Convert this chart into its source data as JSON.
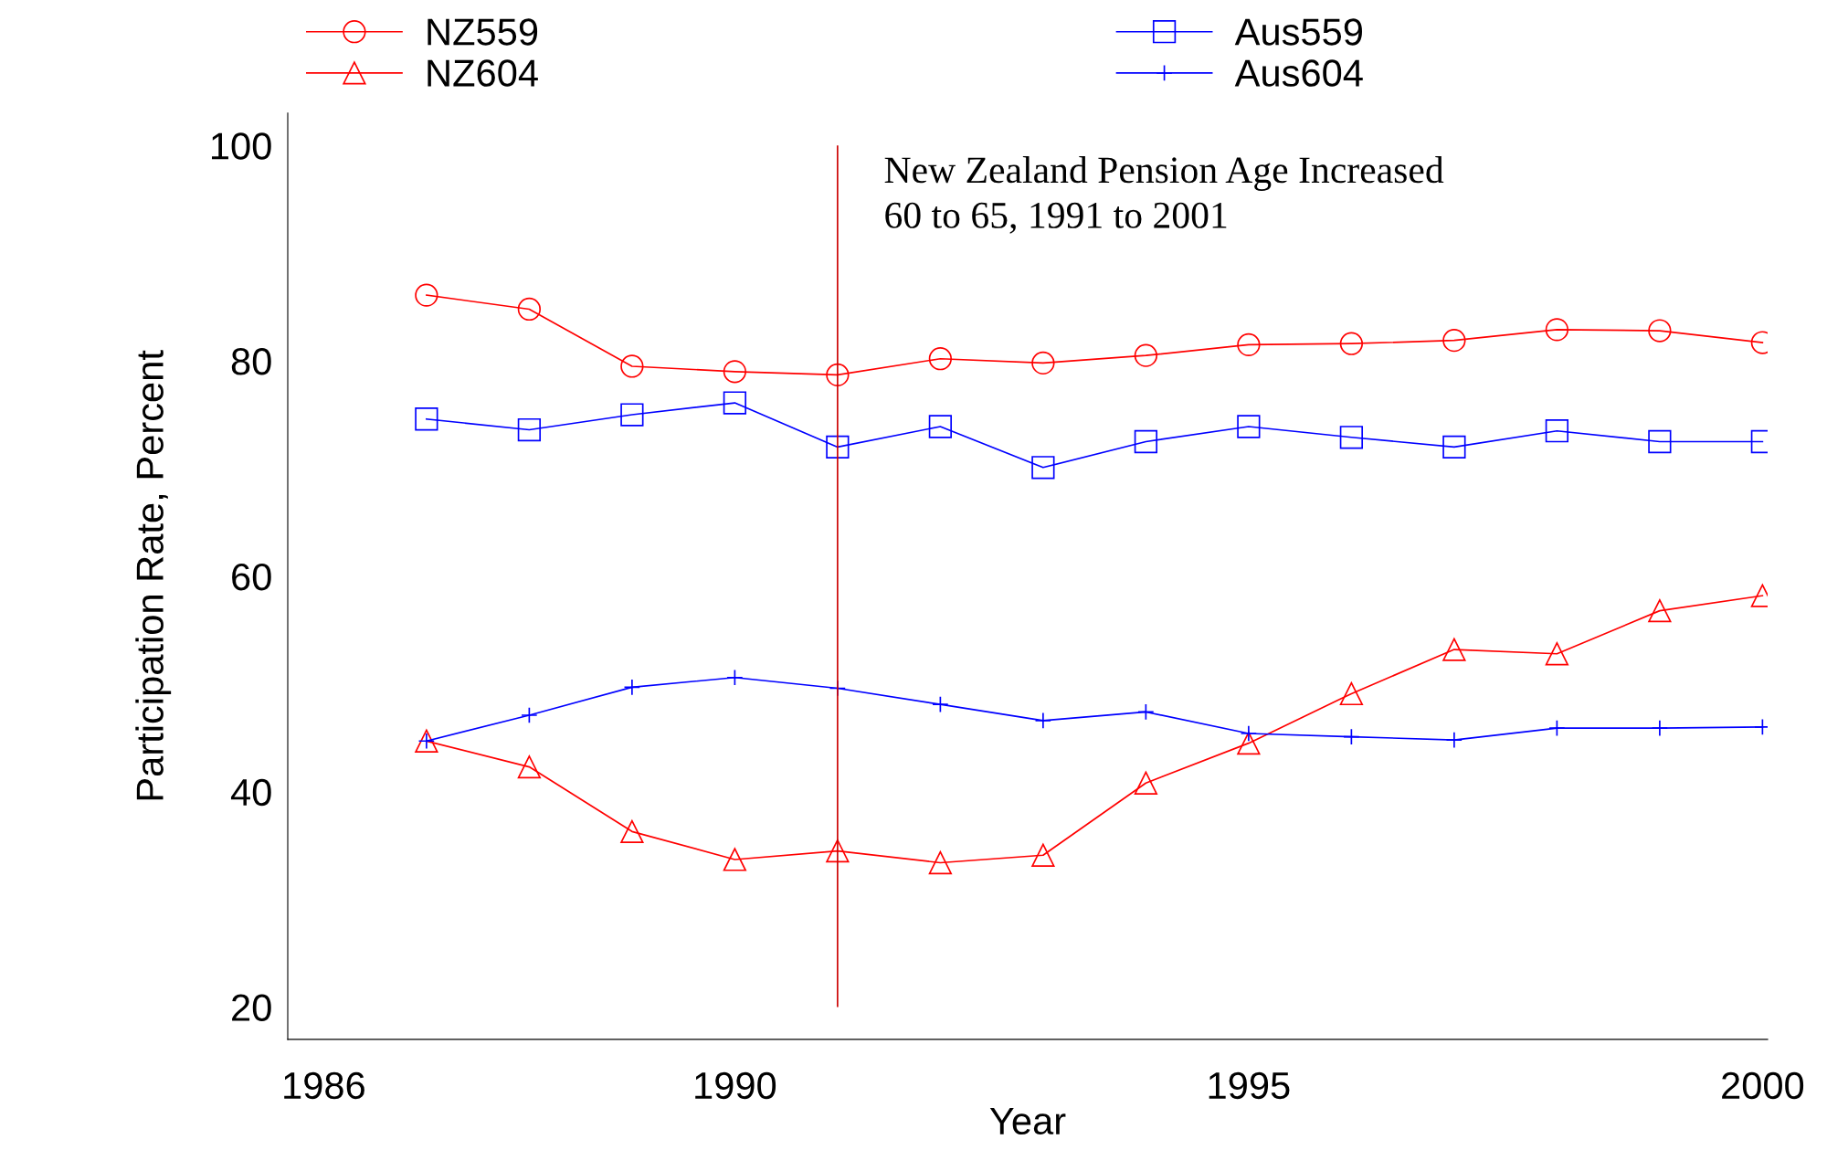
{
  "chart_data": {
    "type": "line",
    "xlabel": "Year",
    "ylabel": "Participation Rate, Percent",
    "x": [
      1987,
      1988,
      1989,
      1990,
      1991,
      1992,
      1993,
      1994,
      1995,
      1996,
      1997,
      1998,
      1999,
      2000
    ],
    "series": [
      {
        "name": "NZ559",
        "color": "#ff0000",
        "marker": "circle",
        "values": [
          86.1,
          84.8,
          79.5,
          79.0,
          78.7,
          80.2,
          79.8,
          80.5,
          81.5,
          81.6,
          81.9,
          82.9,
          82.8,
          81.7
        ]
      },
      {
        "name": "NZ604",
        "color": "#ff0000",
        "marker": "triangle",
        "values": [
          44.7,
          42.3,
          36.3,
          33.7,
          34.5,
          33.4,
          34.1,
          40.8,
          44.5,
          49.1,
          53.2,
          52.8,
          56.8,
          58.2
        ]
      },
      {
        "name": "Aus559",
        "color": "#0000ff",
        "marker": "square",
        "values": [
          74.6,
          73.6,
          75.0,
          76.1,
          72.0,
          73.9,
          70.1,
          72.5,
          73.9,
          72.9,
          72.0,
          73.5,
          72.5,
          72.5
        ]
      },
      {
        "name": "Aus604",
        "color": "#0000ff",
        "marker": "cross",
        "values": [
          44.7,
          47.1,
          49.7,
          50.6,
          49.6,
          48.1,
          46.6,
          47.4,
          45.4,
          45.1,
          44.8,
          45.9,
          45.9,
          46.0
        ]
      }
    ],
    "xlim": [
      1985.65,
      2000.05
    ],
    "xticks": [
      1986,
      1990,
      1995,
      2000
    ],
    "ylim": [
      17,
      103
    ],
    "yticks": [
      20,
      40,
      60,
      80,
      100
    ],
    "ref_lines": [
      {
        "axis": "x",
        "value": 1991,
        "label": "New Zealand Pension Age Increased\n60 to 65, 1991 to 2001",
        "color": "#cc0000"
      }
    ],
    "grid": false,
    "legend": "top",
    "line_style": "solid"
  }
}
